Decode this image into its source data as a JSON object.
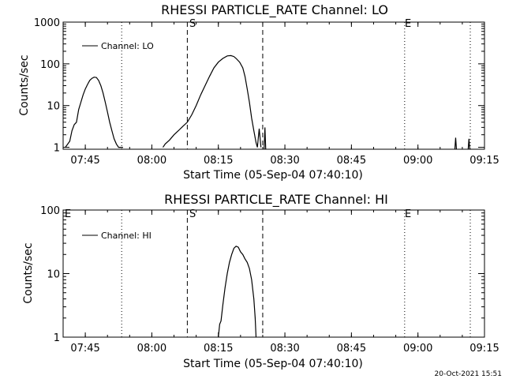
{
  "footer_timestamp": "20-Oct-2021 15:51",
  "chart_data": [
    {
      "type": "line",
      "title": "RHESSI PARTICLE_RATE Channel: LO",
      "xlabel": "Start Time (05-Sep-04 07:40:10)",
      "ylabel": "Counts/sec",
      "y_scale": "log",
      "ylim": [
        0.9,
        1000
      ],
      "xlim_minutes": [
        0,
        95
      ],
      "x_tick_labels": [
        "07:45",
        "08:00",
        "08:15",
        "08:30",
        "08:45",
        "09:00",
        "09:15"
      ],
      "x_tick_minutes": [
        5,
        20,
        35,
        50,
        65,
        80,
        95
      ],
      "y_tick_labels": [
        "1",
        "10",
        "100",
        "1000"
      ],
      "y_tick_values": [
        1,
        10,
        100,
        1000
      ],
      "legend": {
        "label": "Channel: LO",
        "position": "top-left"
      },
      "markers": {
        "S": "S",
        "E": "E"
      },
      "series": [
        {
          "name": "Channel: LO",
          "x": [
            0.5,
            1.5,
            2.0,
            2.5,
            3.0,
            3.5,
            4.0,
            4.5,
            5.0,
            5.5,
            6.0,
            6.5,
            7.0,
            7.5,
            8.0,
            8.5,
            9.0,
            9.5,
            10.0,
            10.5,
            11.0,
            11.5,
            12.0,
            12.5,
            13.0,
            13.5,
            22.5,
            23.0,
            24.0,
            25.0,
            26.0,
            27.0,
            28.0,
            29.0,
            30.0,
            31.0,
            32.0,
            33.0,
            34.0,
            35.0,
            36.0,
            37.0,
            37.8,
            38.5,
            39.0,
            39.8,
            40.5,
            41.0,
            41.5,
            42.0,
            42.5,
            43.0,
            43.5,
            43.8,
            44.2,
            44.6
          ],
          "y": [
            1,
            1.4,
            2.5,
            3.5,
            4,
            8,
            12,
            18,
            25,
            32,
            40,
            45,
            48,
            47,
            40,
            30,
            20,
            12,
            7,
            4,
            2.5,
            1.6,
            1.2,
            1,
            1,
            1,
            1,
            1.2,
            1.5,
            2,
            2.5,
            3.2,
            4,
            6,
            10,
            18,
            30,
            50,
            80,
            110,
            135,
            155,
            158,
            150,
            135,
            110,
            80,
            50,
            25,
            12,
            5,
            2.5,
            1.3,
            1,
            2.8,
            1
          ],
          "spikes": [
            {
              "x": 45.5,
              "y": 3
            },
            {
              "x": 88.5,
              "y": 1.7
            },
            {
              "x": 91.5,
              "y": 1.6
            }
          ]
        }
      ],
      "vlines_dashed_minutes": [
        28.0,
        45.0
      ],
      "vlines_dotted_minutes": [
        13.2,
        77.0,
        91.8
      ]
    },
    {
      "type": "line",
      "title": "RHESSI PARTICLE_RATE Channel: HI",
      "xlabel": "Start Time (05-Sep-04 07:40:10)",
      "ylabel": "Counts/sec",
      "y_scale": "log",
      "ylim": [
        1,
        100
      ],
      "xlim_minutes": [
        0,
        95
      ],
      "x_tick_labels": [
        "07:45",
        "08:00",
        "08:15",
        "08:30",
        "08:45",
        "09:00",
        "09:15"
      ],
      "x_tick_minutes": [
        5,
        20,
        35,
        50,
        65,
        80,
        95
      ],
      "y_tick_labels": [
        "1",
        "10",
        "100"
      ],
      "y_tick_values": [
        1,
        10,
        100
      ],
      "legend": {
        "label": "Channel: HI",
        "position": "top-left"
      },
      "markers": {
        "S": "S",
        "E": "E",
        "E_left": "E"
      },
      "series": [
        {
          "name": "Channel: HI",
          "x": [
            35.0,
            35.3,
            35.6,
            36.0,
            36.5,
            37.0,
            37.5,
            38.0,
            38.5,
            39.0,
            39.5,
            40.0,
            40.5,
            41.0,
            41.5,
            42.0,
            42.5,
            43.0,
            43.3,
            43.5
          ],
          "y": [
            1,
            1.6,
            1.8,
            3.2,
            6,
            10,
            15,
            20,
            25,
            27,
            26,
            22,
            20,
            17,
            15,
            12,
            8,
            4,
            2,
            1
          ]
        }
      ],
      "vlines_dashed_minutes": [
        28.0,
        45.0
      ],
      "vlines_dotted_minutes": [
        13.2,
        77.0,
        91.8
      ]
    }
  ]
}
